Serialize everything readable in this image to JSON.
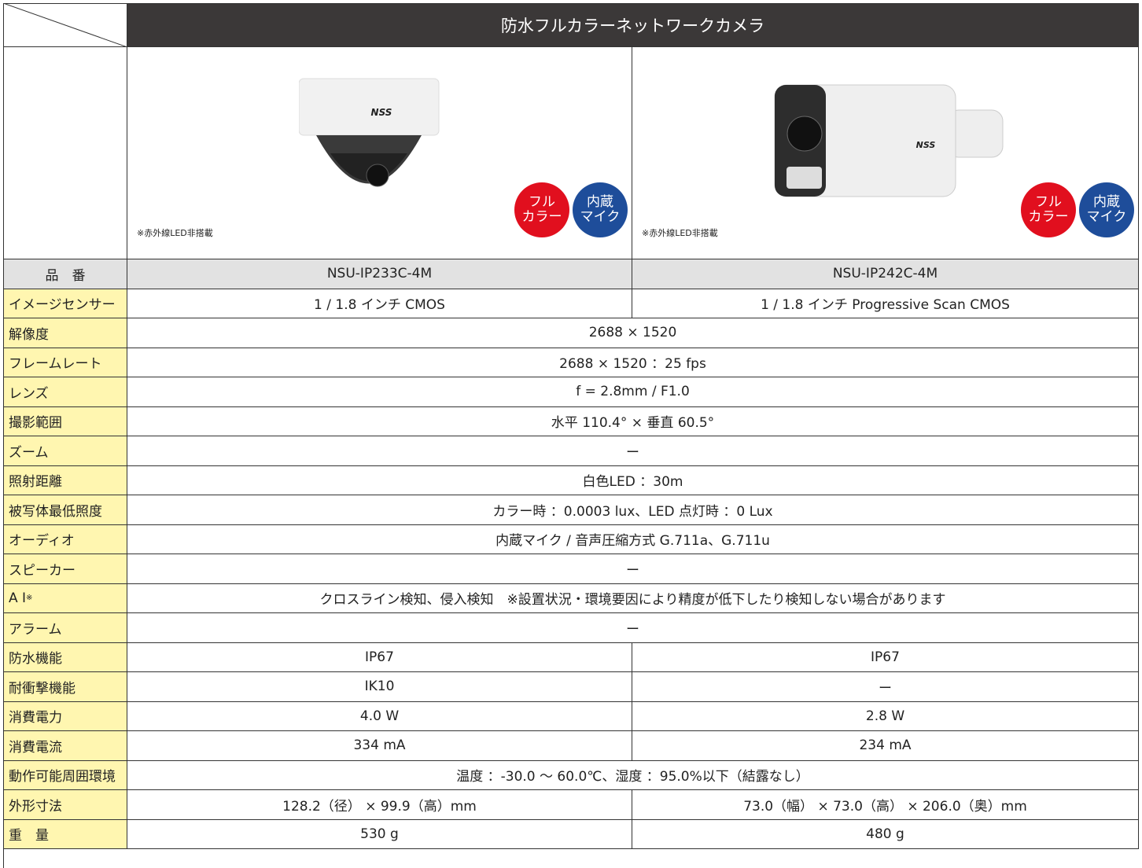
{
  "header": {
    "title": "防水フルカラーネットワークカメラ"
  },
  "products": [
    {
      "badges": [
        {
          "lines": [
            "フル",
            "カラー"
          ]
        },
        {
          "lines": [
            "内蔵",
            "マイク"
          ]
        }
      ],
      "note": "※赤外線LED非搭載"
    },
    {
      "badges": [
        {
          "lines": [
            "フル",
            "カラー"
          ]
        },
        {
          "lines": [
            "内蔵",
            "マイク"
          ]
        }
      ],
      "note": "※赤外線LED非搭載"
    }
  ],
  "table": {
    "rows": [
      {
        "label": "品　番",
        "values": [
          "NSU-IP233C-4M",
          "NSU-IP242C-4M"
        ]
      },
      {
        "label": "イメージセンサー",
        "values": [
          "1 / 1.8 インチ CMOS",
          "1 / 1.8 インチ Progressive Scan CMOS"
        ]
      },
      {
        "label": "解像度",
        "values": [
          "2688 × 1520"
        ]
      },
      {
        "label": "フレームレート",
        "values": [
          "2688 × 1520 ：25 fps"
        ]
      },
      {
        "label": "レンズ",
        "values": [
          "f = 2.8mm / F1.0"
        ]
      },
      {
        "label": "撮影範囲",
        "values": [
          "水平 110.4° × 垂直 60.5°"
        ]
      },
      {
        "label": "ズーム",
        "values": [
          "ー"
        ]
      },
      {
        "label": "照射距離",
        "values": [
          "白色LED ：30m"
        ]
      },
      {
        "label": "被写体最低照度",
        "values": [
          "カラー時 ：0.0003 lux、LED 点灯時 ：0 Lux"
        ]
      },
      {
        "label": "オーディオ",
        "values": [
          "内蔵マイク / 音声圧縮方式 G.711a、G.711u"
        ]
      },
      {
        "label": "スピーカー",
        "values": [
          "ー"
        ]
      },
      {
        "label": "A I",
        "label_note": "※",
        "values": [
          "クロスライン検知、侵入検知　※設置状況・環境要因により精度が低下したり検知しない場合があります"
        ]
      },
      {
        "label": "アラーム",
        "values": [
          "ー"
        ]
      },
      {
        "label": "防水機能",
        "values": [
          "IP67",
          "IP67"
        ]
      },
      {
        "label": "耐衝撃機能",
        "values": [
          "IK10",
          "ー"
        ]
      },
      {
        "label": "消費電力",
        "values": [
          "4.0 W",
          "2.8 W"
        ]
      },
      {
        "label": "消費電流",
        "values": [
          "334 mA",
          "234 mA"
        ]
      },
      {
        "label": "動作可能周囲環境",
        "values": [
          "温度 ：-30.0 〜 60.0℃、湿度 ：95.0%以下（結露なし）"
        ]
      },
      {
        "label": "外形寸法",
        "values": [
          "128.2（径） × 99.9（高）mm",
          "73.0（幅） × 73.0（高） × 206.0（奥）mm"
        ]
      },
      {
        "label": "重　量",
        "values": [
          "530 g",
          "480 g"
        ]
      }
    ]
  }
}
